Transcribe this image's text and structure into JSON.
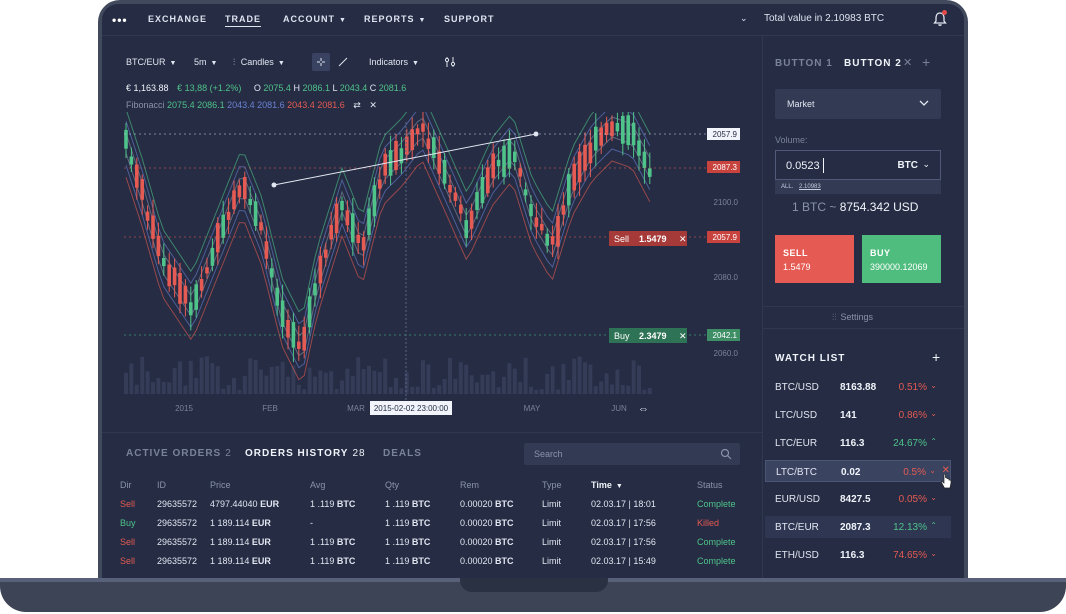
{
  "nav": {
    "items": [
      "EXCHANGE",
      "TRADE",
      "ACCOUNT",
      "REPORTS",
      "SUPPORT"
    ],
    "active": "TRADE",
    "total_value": "Total value in 2.10983 BTC"
  },
  "toolbar": {
    "pair": "BTC/EUR",
    "interval": "5m",
    "chart_type": "Candles",
    "indicators": "Indicators"
  },
  "ohlc": {
    "price": "€ 1,163.88",
    "change": "€ 13,88 (+1.2%)",
    "o_label": "O",
    "o": "2075.4",
    "h_label": "H",
    "h": "2086.1",
    "l_label": "L",
    "l": "2043.4",
    "c_label": "C",
    "c": "2081.6"
  },
  "fibonacci": {
    "label": "Fibonacci",
    "values": [
      "2075.4",
      "2086.1",
      "2043.4",
      "2081.6",
      "2043.4",
      "2081.6"
    ],
    "colors": [
      "#4fc38a",
      "#4fc38a",
      "#6b82d6",
      "#6b82d6",
      "#e55b53",
      "#e55b53"
    ]
  },
  "chart_data": {
    "type": "candlestick",
    "y_ticks": [
      "2100.0",
      "2080.0",
      "2060.0",
      "2040.0"
    ],
    "price_tags": [
      {
        "label": "2057.9",
        "style": "white"
      },
      {
        "label": "2087.3",
        "style": "red"
      },
      {
        "label": "2057.9",
        "style": "red"
      },
      {
        "label": "2042.1",
        "style": "green"
      }
    ],
    "order_tags": [
      {
        "side": "Sell",
        "value": "1.5479"
      },
      {
        "side": "Buy",
        "value": "2.3479"
      }
    ],
    "x_ticks": [
      "2015",
      "FEB",
      "MAR",
      "MAY",
      "JUN"
    ],
    "crosshair_label": "2015-02-02 23:00:00",
    "colors": {
      "up": "#4fc38a",
      "down": "#e55b53"
    }
  },
  "orders": {
    "tabs": [
      {
        "label": "ACTIVE ORDERS",
        "count": "2"
      },
      {
        "label": "ORDERS HISTORY",
        "count": "28"
      },
      {
        "label": "DEALS",
        "count": ""
      }
    ],
    "search_placeholder": "Search",
    "columns": [
      "Dir",
      "ID",
      "Price",
      "Avg",
      "Qty",
      "Rem",
      "Type",
      "Time",
      "Status"
    ],
    "rows": [
      {
        "dir": "Sell",
        "id": "29635572",
        "price_num": "4797.44040",
        "price_cur": "EUR",
        "avg_num": "1 .119",
        "avg_cur": "BTC",
        "qty_num": "1 .119",
        "qty_cur": "BTC",
        "rem_num": "0.00020",
        "rem_cur": "BTC",
        "type": "Limit",
        "time": "02.03.17 | 18:01",
        "status": "Complete"
      },
      {
        "dir": "Buy",
        "id": "29635572",
        "price_num": "1 189.114",
        "price_cur": "EUR",
        "avg_num": "-",
        "avg_cur": "",
        "qty_num": "1 .119",
        "qty_cur": "BTC",
        "rem_num": "0.00020",
        "rem_cur": "BTC",
        "type": "Limit",
        "time": "02.03.17 | 17:56",
        "status": "Killed"
      },
      {
        "dir": "Sell",
        "id": "29635572",
        "price_num": "1 189.114",
        "price_cur": "EUR",
        "avg_num": "1 .119",
        "avg_cur": "BTC",
        "qty_num": "1 .119",
        "qty_cur": "BTC",
        "rem_num": "0.00020",
        "rem_cur": "BTC",
        "type": "Limit",
        "time": "02.03.17 | 17:56",
        "status": "Complete"
      },
      {
        "dir": "Sell",
        "id": "29635572",
        "price_num": "1 189.114",
        "price_cur": "EUR",
        "avg_num": "1 .119",
        "avg_cur": "BTC",
        "qty_num": "1 .119",
        "qty_cur": "BTC",
        "rem_num": "0.00020",
        "rem_cur": "BTC",
        "type": "Limit",
        "time": "02.03.17 | 15:49",
        "status": "Complete"
      }
    ]
  },
  "panel": {
    "tabs": [
      "BUTTON 1",
      "BUTTON 2"
    ],
    "market": "Market",
    "volume_label": "Volume:",
    "volume": "0.0523",
    "volume_unit": "BTC",
    "all_label": "ALL",
    "all_value": "2.10983",
    "rate_prefix": "1 BTC ~",
    "rate_value": "8754.342 USD",
    "sell_label": "SELL",
    "sell_value": "1.5479",
    "buy_label": "BUY",
    "buy_value": "390000.12069",
    "settings": "Settings"
  },
  "watchlist": {
    "title": "WATCH LIST",
    "items": [
      {
        "pair": "BTC/USD",
        "price": "8163.88",
        "change": "0.51%",
        "dir": "down"
      },
      {
        "pair": "LTC/USD",
        "price": "141",
        "change": "0.86%",
        "dir": "down"
      },
      {
        "pair": "LTC/EUR",
        "price": "116.3",
        "change": "24.67%",
        "dir": "up"
      },
      {
        "pair": "LTC/BTC",
        "price": "0.02",
        "change": "0.5%",
        "dir": "down"
      },
      {
        "pair": "EUR/USD",
        "price": "8427.5",
        "change": "0.05%",
        "dir": "down"
      },
      {
        "pair": "BTC/EUR",
        "price": "2087.3",
        "change": "12.13%",
        "dir": "up"
      },
      {
        "pair": "ETH/USD",
        "price": "116.3",
        "change": "74.65%",
        "dir": "down"
      }
    ]
  }
}
